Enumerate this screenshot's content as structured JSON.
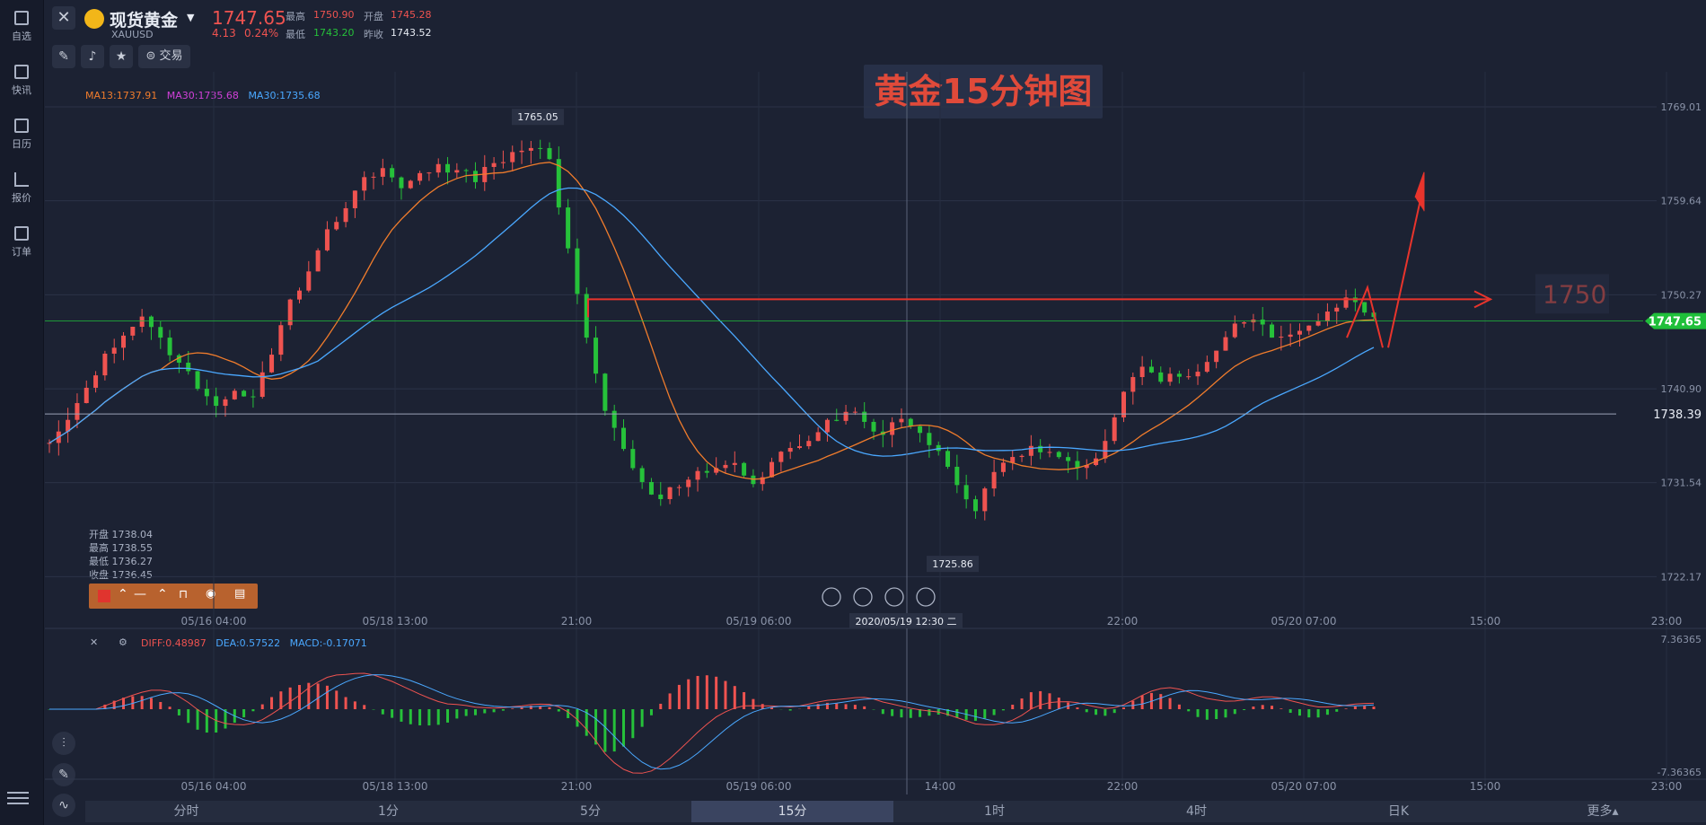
{
  "sidebar": {
    "items": [
      {
        "label": "自选",
        "icon": "bookmark-icon"
      },
      {
        "label": "快讯",
        "icon": "news-icon"
      },
      {
        "label": "日历",
        "icon": "calendar-icon"
      },
      {
        "label": "报价",
        "icon": "quote-icon"
      },
      {
        "label": "订单",
        "icon": "order-icon"
      }
    ]
  },
  "header": {
    "symbol_name": "现货黄金",
    "symbol_code": "XAUUSD",
    "price": "1747.65",
    "change": "4.13",
    "change_pct": "0.24%",
    "high_label": "最高",
    "high": "1750.90",
    "open_label": "开盘",
    "open": "1745.28",
    "low_label": "最低",
    "low": "1743.20",
    "prev_label": "昨收",
    "prev_close": "1743.52",
    "trade_label": "交易"
  },
  "overlay_title": "黄金15分钟图",
  "annotation_label": "1750",
  "ma_legend": [
    {
      "label": "MA13:1737.91",
      "color": "#f07c2c"
    },
    {
      "label": "MA30:1735.68",
      "color": "#d040d8"
    },
    {
      "label": "MA30:1735.68",
      "color": "#4aa8ff"
    }
  ],
  "hover_ohlc": {
    "open": "开盘 1738.04",
    "high": "最高 1738.55",
    "low": "最低 1736.27",
    "close": "收盘 1736.45"
  },
  "macd_legend": {
    "diff": "DIFF:0.48987",
    "dea": "DEA:0.57522",
    "macd": "MACD:-0.17071"
  },
  "crosshair_label": "2020/05/19 12:30 二",
  "horizontal_line_label": "1738.39",
  "colors": {
    "up": "#ef5350",
    "down": "#26c13a",
    "bg": "#1c2233",
    "price_tag": "#1fbf3a"
  },
  "chart_data": {
    "type": "candlestick",
    "title": "黄金15分钟图",
    "y_ticks": [
      1769.01,
      1759.64,
      1750.27,
      1740.9,
      1731.54,
      1722.17
    ],
    "ylim": [
      1718.8,
      1772.5
    ],
    "x_ticks": [
      "05/16 04:00",
      "05/18 13:00",
      "21:00",
      "05/19 06:00",
      "14:00",
      "22:00",
      "05/20 07:00",
      "15:00",
      "23:00"
    ],
    "last_price": 1747.65,
    "annotated_high": 1765.05,
    "annotated_low": 1725.86,
    "resistance": 1750,
    "macd_ylim": [
      -7.36365,
      7.36365
    ],
    "macd_ticks": [
      "7.36365",
      "-7.36365"
    ],
    "close_path": [
      1735.5,
      1737.8,
      1741.0,
      1744.4,
      1746.2,
      1748.1,
      1746.0,
      1743.5,
      1740.9,
      1739.2,
      1740.7,
      1740.1,
      1744.3,
      1749.8,
      1752.6,
      1756.8,
      1758.9,
      1762.0,
      1762.9,
      1760.9,
      1762.4,
      1763.3,
      1762.7,
      1761.5,
      1763.4,
      1764.5,
      1764.9,
      1763.8,
      1754.9,
      1746.0,
      1738.7,
      1734.9,
      1731.6,
      1729.9,
      1731.1,
      1732.7,
      1733.0,
      1733.5,
      1731.4,
      1733.6,
      1735.0,
      1735.7,
      1737.8,
      1738.6,
      1737.6,
      1736.3,
      1737.9,
      1736.5,
      1734.7,
      1731.3,
      1728.7,
      1732.6,
      1734.1,
      1735.2,
      1734.6,
      1733.7,
      1733.3,
      1735.7,
      1740.6,
      1743.1,
      1741.6,
      1742.1,
      1742.6,
      1744.7,
      1747.4,
      1747.8,
      1746.0,
      1746.3,
      1747.2,
      1748.6,
      1750.0,
      1748.5
    ]
  }
}
